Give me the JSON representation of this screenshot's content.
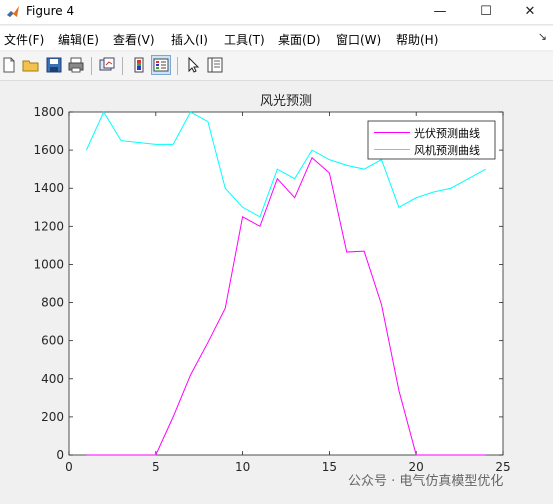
{
  "window": {
    "title": "Figure 4",
    "minimize": "—",
    "maximize": "☐",
    "close": "✕"
  },
  "menu": [
    "文件(F)",
    "编辑(E)",
    "查看(V)",
    "插入(I)",
    "工具(T)",
    "桌面(D)",
    "窗口(W)",
    "帮助(H)"
  ],
  "menu_overflow": "↘",
  "toolbar": [
    "new-figure-icon",
    "open-file-icon",
    "save-icon",
    "print-icon",
    "link-plot-icon",
    "colorbar-icon",
    "legend-icon",
    "pointer-icon",
    "property-inspector-icon"
  ],
  "watermark": "公众号 · 电气仿真模型优化",
  "chart_data": {
    "type": "line",
    "title": "风光预测",
    "xlabel": "",
    "ylabel": "",
    "xlim": [
      0,
      25
    ],
    "ylim": [
      0,
      1800
    ],
    "xticks": [
      0,
      5,
      10,
      15,
      20,
      25
    ],
    "yticks": [
      0,
      200,
      400,
      600,
      800,
      1000,
      1200,
      1400,
      1600,
      1800
    ],
    "grid": false,
    "legend": "top-right",
    "x": [
      1,
      2,
      3,
      4,
      5,
      6,
      7,
      8,
      9,
      10,
      11,
      12,
      13,
      14,
      15,
      16,
      17,
      18,
      19,
      20,
      21,
      22,
      23,
      24
    ],
    "series": [
      {
        "name": "光伏预测曲线",
        "color": "#ff00ff",
        "values": [
          0,
          0,
          0,
          0,
          0,
          200,
          420,
          590,
          770,
          1250,
          1200,
          1450,
          1350,
          1560,
          1480,
          1065,
          1070,
          790,
          340,
          0,
          0,
          0,
          0,
          0
        ]
      },
      {
        "name": "风机预测曲线",
        "color": "#00ffff",
        "values": [
          1600,
          1800,
          1650,
          1640,
          1630,
          1630,
          1800,
          1750,
          1400,
          1300,
          1250,
          1500,
          1450,
          1600,
          1550,
          1520,
          1500,
          1550,
          1300,
          1350,
          1380,
          1400,
          1450,
          1500
        ]
      }
    ]
  }
}
